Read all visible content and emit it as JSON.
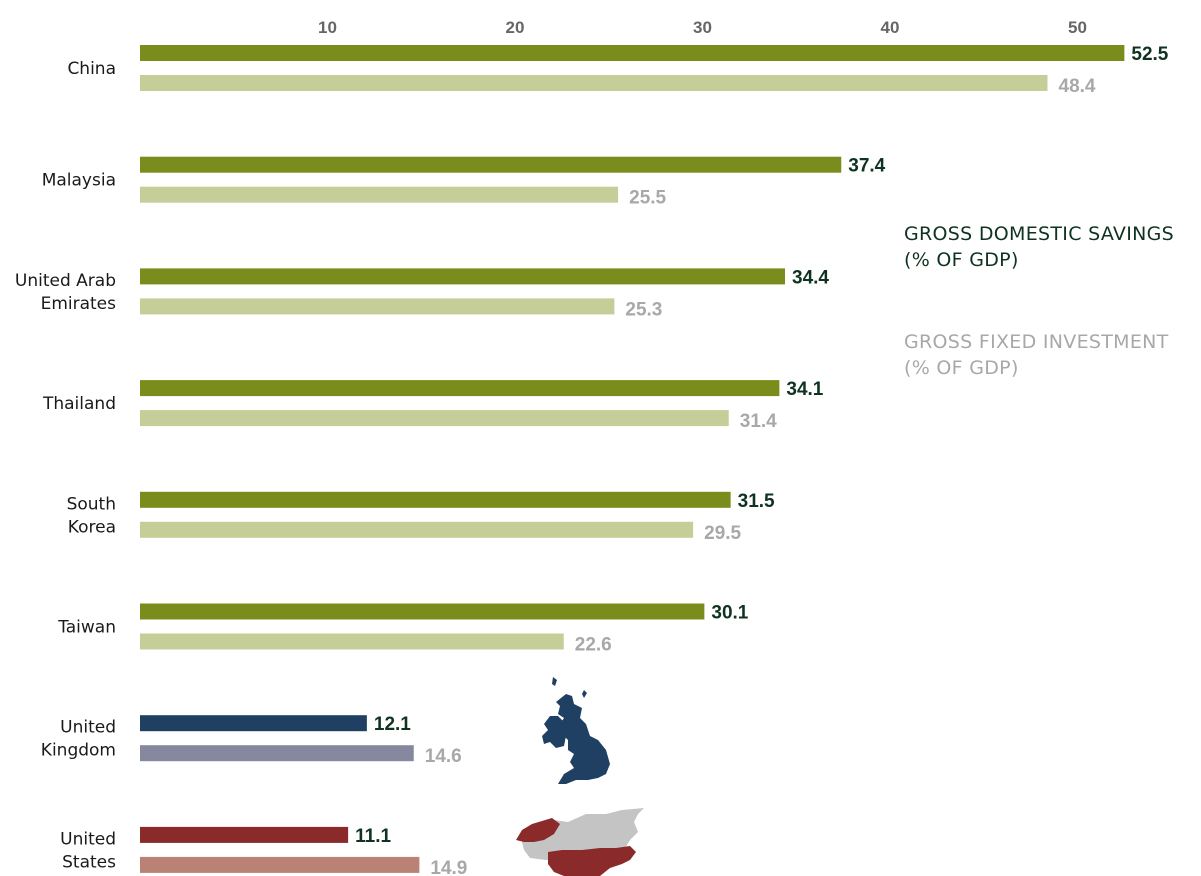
{
  "chart_data": {
    "type": "bar",
    "orientation": "horizontal",
    "x_ticks": [
      10,
      20,
      30,
      40,
      50
    ],
    "xlim": [
      0,
      55
    ],
    "grid": false,
    "categories": [
      [
        "China"
      ],
      [
        "Malaysia"
      ],
      [
        "United Arab",
        "Emirates"
      ],
      [
        "Thailand"
      ],
      [
        "South",
        "Korea"
      ],
      [
        "Taiwan"
      ],
      [
        "United",
        "Kingdom"
      ],
      [
        "United",
        "States"
      ]
    ],
    "series": [
      {
        "name": "GROSS DOMESTIC SAVINGS (% OF GDP)",
        "values": [
          52.5,
          37.4,
          34.4,
          34.1,
          31.5,
          30.1,
          12.1,
          11.1
        ],
        "labels": [
          "52.5",
          "37.4",
          "34.4",
          "34.1",
          "31.5",
          "30.1",
          "12.1",
          "11.1"
        ]
      },
      {
        "name": "GROSS FIXED INVESTMENT (% OF GDP)",
        "values": [
          48.4,
          25.5,
          25.3,
          31.4,
          29.5,
          22.6,
          14.6,
          14.9
        ],
        "labels": [
          "48.4",
          "25.5",
          "25.3",
          "31.4",
          "29.5",
          "22.6",
          "14.6",
          "14.9"
        ]
      }
    ],
    "legend": {
      "placement": "right",
      "savings": [
        "GROSS DOMESTIC SAVINGS",
        "(% OF GDP)"
      ],
      "investment": [
        "GROSS FIXED INVESTMENT",
        "(% OF GDP)"
      ]
    },
    "colors": {
      "savings_default": "#7a8c1c",
      "investment_default": "#c5cd98",
      "savings_uk": "#1f4063",
      "investment_uk": "#85889e",
      "savings_us": "#8b2a2a",
      "investment_us": "#b98274",
      "savings_label": "#0f3320",
      "investment_label": "#a8a8a8"
    },
    "icons": [
      "uk-map-icon",
      "north-america-map-icon"
    ]
  }
}
